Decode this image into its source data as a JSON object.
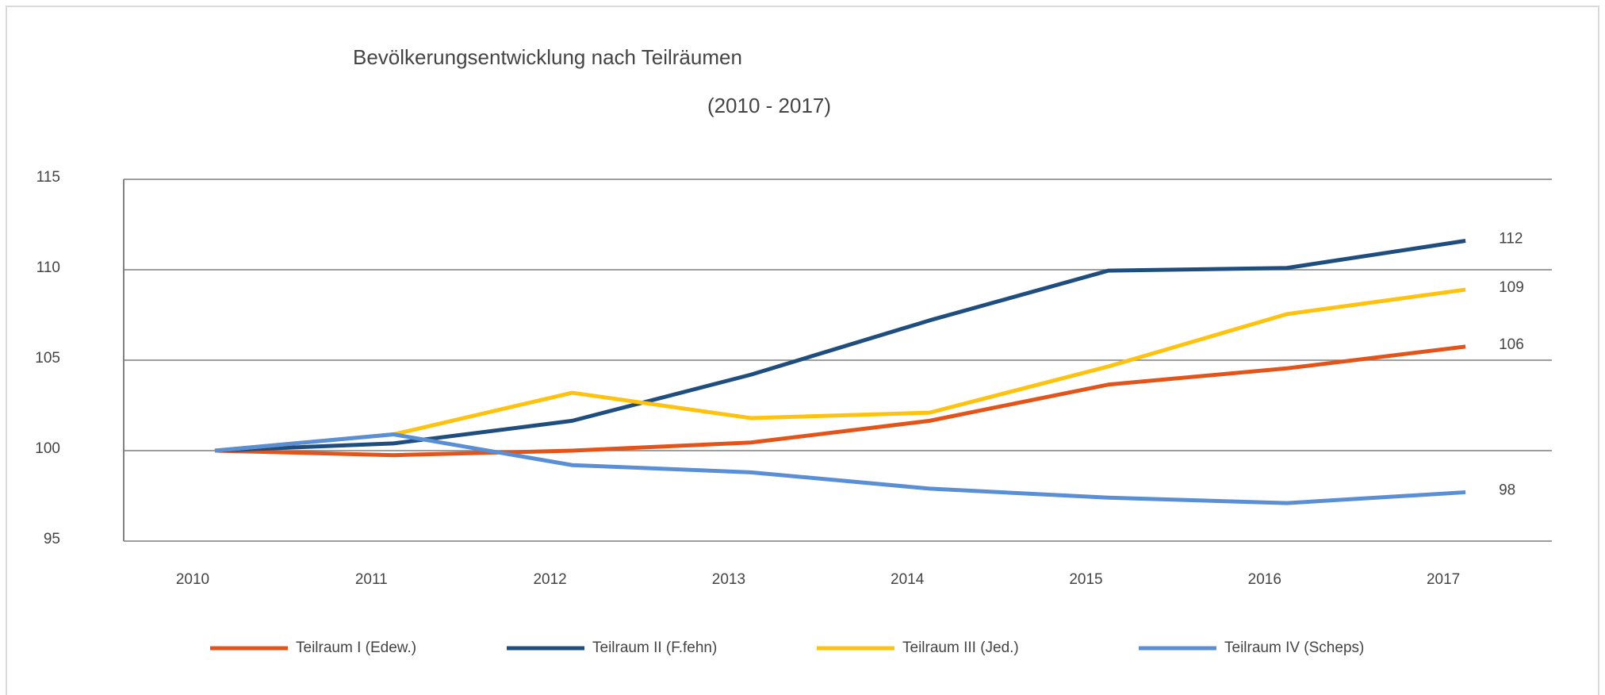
{
  "chart_data": {
    "type": "line",
    "title": "Bevölkerungsentwicklung nach Teilräumen",
    "subtitle": "(2010 - 2017)",
    "categories": [
      "2010",
      "2011",
      "2012",
      "2013",
      "2014",
      "2015",
      "2016",
      "2017"
    ],
    "series": [
      {
        "name": "Teilraum I (Edew.)",
        "color": "#e2541a",
        "values": [
          100,
          99.75,
          100,
          100.45,
          101.65,
          103.65,
          104.55,
          105.75
        ],
        "value_labels": [
          null,
          null,
          null,
          null,
          null,
          null,
          null,
          "106"
        ]
      },
      {
        "name": "Teilraum II (F.fehn)",
        "color": "#1f4e7e",
        "values": [
          100,
          100.4,
          101.65,
          104.2,
          107.2,
          109.95,
          110.1,
          111.6
        ],
        "value_labels": [
          null,
          null,
          null,
          null,
          null,
          null,
          null,
          "112"
        ]
      },
      {
        "name": "Teilraum III (Jed.)",
        "color": "#ffc20e",
        "values": [
          100,
          100.9,
          103.2,
          101.8,
          102.1,
          104.65,
          107.55,
          108.9
        ],
        "value_labels": [
          null,
          null,
          null,
          null,
          null,
          null,
          null,
          "109"
        ]
      },
      {
        "name": "Teilraum IV (Scheps)",
        "color": "#5a8fd5",
        "values": [
          100,
          100.9,
          99.2,
          98.8,
          97.9,
          97.4,
          97.1,
          97.7
        ],
        "value_labels": [
          null,
          null,
          null,
          null,
          null,
          null,
          null,
          "98"
        ]
      }
    ],
    "ylim": [
      95,
      115
    ],
    "yticks": [
      95,
      100,
      105,
      110,
      115
    ],
    "grid": true,
    "legend": "bottom"
  }
}
